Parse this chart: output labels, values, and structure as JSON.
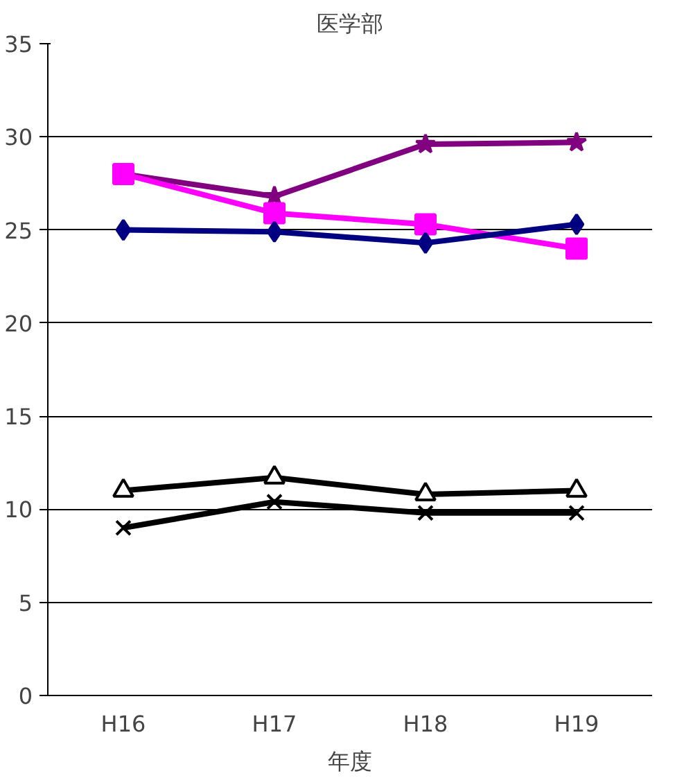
{
  "chart_data": {
    "type": "line",
    "title": "医学部",
    "xlabel": "年度",
    "categories": [
      "H16",
      "H17",
      "H18",
      "H19"
    ],
    "ylim": [
      0,
      35
    ],
    "yticks": [
      0,
      5,
      10,
      15,
      20,
      25,
      30,
      35
    ],
    "grid": "y",
    "line_style": "solid",
    "series": [
      {
        "color": "#800080",
        "marker": "star",
        "values": [
          28.0,
          26.8,
          29.6,
          29.7
        ]
      },
      {
        "color": "#ff00ff",
        "marker": "square",
        "values": [
          28.0,
          25.9,
          25.3,
          24.0
        ]
      },
      {
        "color": "#000080",
        "marker": "diamond",
        "values": [
          25.0,
          24.9,
          24.3,
          25.3
        ]
      },
      {
        "color": "#000000",
        "marker": "triangle",
        "values": [
          11.0,
          11.7,
          10.8,
          11.0
        ]
      },
      {
        "color": "#000000",
        "marker": "cross",
        "values": [
          9.0,
          10.4,
          9.8,
          9.8
        ]
      }
    ]
  }
}
